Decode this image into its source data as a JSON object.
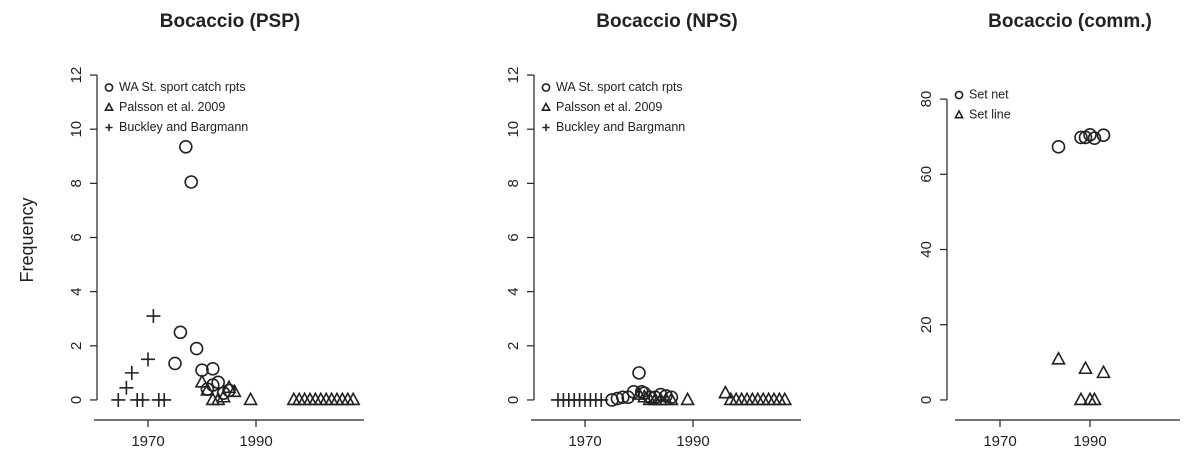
{
  "chart_data": [
    {
      "type": "scatter",
      "title": "Bocaccio (PSP)",
      "ylabel": "Frequency",
      "xlim": [
        1960,
        2010
      ],
      "ylim": [
        -0.5,
        12.5
      ],
      "xticks": [
        1970,
        1990
      ],
      "yticks": [
        0,
        2,
        4,
        6,
        8,
        10,
        12
      ],
      "legend": "top-left",
      "series": [
        {
          "name": "WA St. sport catch rpts",
          "marker": "circle",
          "color": "#222222",
          "x": [
            1975,
            1976,
            1977,
            1978,
            1979,
            1980,
            1981,
            1982,
            1982,
            1983,
            1984,
            1985
          ],
          "values": [
            1.35,
            2.5,
            9.35,
            8.05,
            1.9,
            1.1,
            0.4,
            1.15,
            0.55,
            0.65,
            0.25,
            0.35
          ]
        },
        {
          "name": "Palsson et al. 2009",
          "marker": "triangle",
          "color": "#222222",
          "x": [
            1980,
            1981,
            1982,
            1983,
            1984,
            1985,
            1986,
            1989,
            1997,
            1998,
            1999,
            2000,
            2001,
            2002,
            2003,
            2004,
            2005,
            2006,
            2007,
            2008
          ],
          "values": [
            0.65,
            0.35,
            0,
            0,
            0.1,
            0.45,
            0.3,
            0,
            0,
            0,
            0,
            0,
            0,
            0,
            0,
            0,
            0,
            0,
            0,
            0
          ]
        },
        {
          "name": "Buckley and Bargmann",
          "marker": "plus",
          "color": "#222222",
          "x": [
            1964.5,
            1966,
            1967,
            1968,
            1969,
            1970,
            1971,
            1972,
            1973
          ],
          "values": [
            0,
            0.45,
            1.0,
            0,
            0,
            1.5,
            3.1,
            0,
            0
          ]
        }
      ]
    },
    {
      "type": "scatter",
      "title": "Bocaccio (NPS)",
      "xlim": [
        1960,
        2010
      ],
      "ylim": [
        -0.5,
        12.5
      ],
      "xticks": [
        1970,
        1990
      ],
      "yticks": [
        0,
        2,
        4,
        6,
        8,
        10,
        12
      ],
      "legend": "top-left",
      "series": [
        {
          "name": "WA St. sport catch rpts",
          "marker": "circle",
          "color": "#222222",
          "x": [
            1975,
            1976,
            1977,
            1978,
            1979,
            1980,
            1980.5,
            1981,
            1982,
            1983,
            1984,
            1985,
            1986
          ],
          "values": [
            0,
            0.05,
            0.1,
            0.1,
            0.3,
            1.0,
            0.3,
            0.25,
            0.1,
            0.1,
            0.2,
            0.15,
            0.1
          ]
        },
        {
          "name": "Palsson et al. 2009",
          "marker": "triangle",
          "color": "#222222",
          "x": [
            1980,
            1981,
            1982,
            1983,
            1984,
            1985,
            1986,
            1989,
            1996,
            1997,
            1998,
            1999,
            2000,
            2001,
            2002,
            2003,
            2004,
            2005,
            2006,
            2007
          ],
          "values": [
            0.2,
            0.1,
            0,
            0,
            0,
            0,
            0,
            0,
            0.25,
            0,
            0,
            0,
            0,
            0,
            0,
            0,
            0,
            0,
            0,
            0
          ]
        },
        {
          "name": "Buckley and Bargmann",
          "marker": "plus",
          "color": "#222222",
          "x": [
            1965,
            1966,
            1967,
            1968,
            1969,
            1970,
            1971,
            1972,
            1973
          ],
          "values": [
            0,
            0,
            0,
            0,
            0,
            0,
            0,
            0,
            0
          ]
        }
      ]
    },
    {
      "type": "scatter",
      "title": "Bocaccio (comm.)",
      "xlim": [
        1960,
        2010
      ],
      "ylim": [
        -3.2,
        88
      ],
      "xticks": [
        1970,
        1990
      ],
      "yticks": [
        0,
        20,
        40,
        60,
        80
      ],
      "legend": "top-left",
      "series": [
        {
          "name": "Set net",
          "marker": "circle",
          "color": "#222222",
          "x": [
            1983,
            1988,
            1989,
            1990,
            1991,
            1993
          ],
          "values": [
            67.3,
            69.8,
            69.8,
            70.5,
            69.6,
            70.4
          ]
        },
        {
          "name": "Set line",
          "marker": "triangle",
          "color": "#222222",
          "x": [
            1983,
            1988,
            1989,
            1990,
            1991,
            1993
          ],
          "values": [
            10.8,
            0,
            8.3,
            0,
            0,
            7.2
          ]
        }
      ]
    }
  ]
}
